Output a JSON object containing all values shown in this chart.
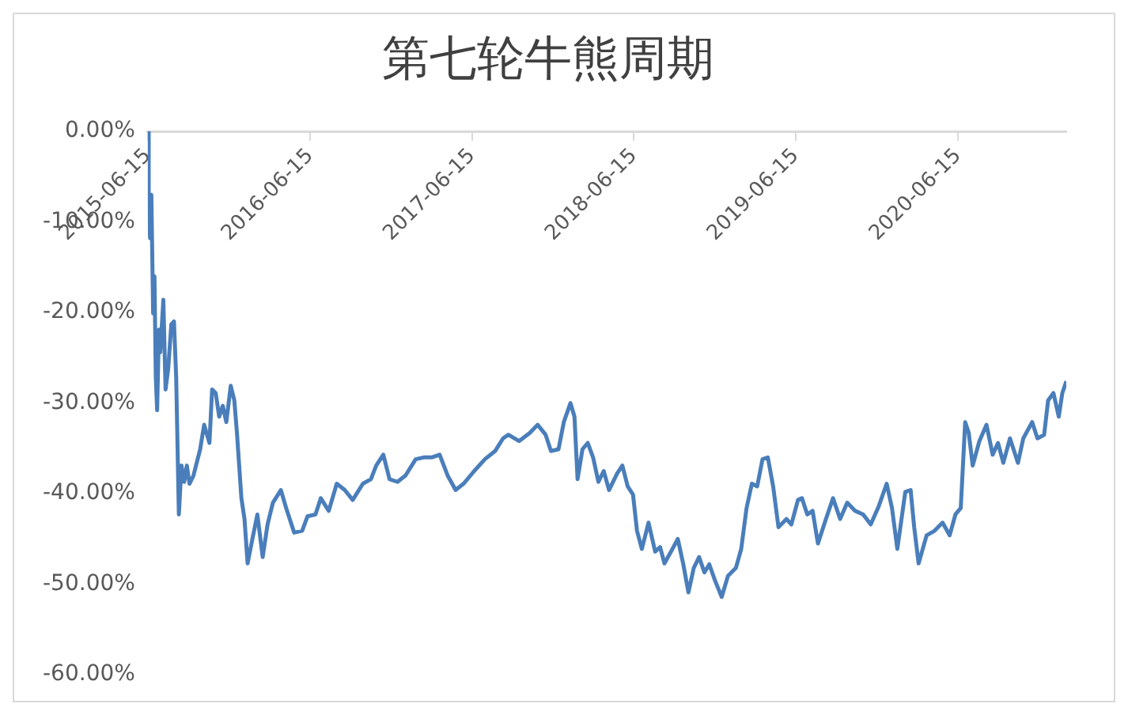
{
  "chart_data": {
    "type": "line",
    "title": "第七轮牛熊周期",
    "x": [
      "2015-06-15",
      "2015-06-17",
      "2015-06-20",
      "2015-06-23",
      "2015-06-27",
      "2015-06-30",
      "2015-07-03",
      "2015-07-06",
      "2015-07-10",
      "2015-07-13",
      "2015-07-20",
      "2015-07-25",
      "2015-07-31",
      "2015-08-07",
      "2015-08-13",
      "2015-08-18",
      "2015-08-24",
      "2015-08-30",
      "2015-09-05",
      "2015-09-11",
      "2015-09-17",
      "2015-09-26",
      "2015-10-11",
      "2015-10-20",
      "2015-11-01",
      "2015-11-07",
      "2015-11-15",
      "2015-11-23",
      "2015-12-01",
      "2015-12-09",
      "2015-12-19",
      "2015-12-27",
      "2016-01-02",
      "2016-01-12",
      "2016-01-19",
      "2016-01-26",
      "2016-02-05",
      "2016-02-17",
      "2016-02-29",
      "2016-03-11",
      "2016-03-23",
      "2016-04-10",
      "2016-04-22",
      "2016-05-10",
      "2016-05-28",
      "2016-06-09",
      "2016-06-27",
      "2016-07-09",
      "2016-07-27",
      "2016-08-14",
      "2016-09-01",
      "2016-09-19",
      "2016-10-12",
      "2016-10-30",
      "2016-11-11",
      "2016-11-27",
      "2016-12-11",
      "2016-12-29",
      "2017-01-16",
      "2017-02-08",
      "2017-02-26",
      "2017-03-16",
      "2017-04-03",
      "2017-04-21",
      "2017-05-09",
      "2017-05-27",
      "2017-06-20",
      "2017-07-14",
      "2017-08-06",
      "2017-08-24",
      "2017-09-05",
      "2017-09-29",
      "2017-10-23",
      "2017-11-10",
      "2017-11-28",
      "2017-12-10",
      "2017-12-27",
      "2018-01-08",
      "2018-01-23",
      "2018-02-01",
      "2018-02-08",
      "2018-02-19",
      "2018-03-03",
      "2018-03-15",
      "2018-03-27",
      "2018-04-08",
      "2018-04-20",
      "2018-05-08",
      "2018-05-20",
      "2018-06-01",
      "2018-06-13",
      "2018-06-22",
      "2018-07-03",
      "2018-07-18",
      "2018-08-02",
      "2018-08-13",
      "2018-08-23",
      "2018-09-10",
      "2018-09-22",
      "2018-10-04",
      "2018-10-16",
      "2018-10-28",
      "2018-11-09",
      "2018-11-21",
      "2018-12-02",
      "2018-12-15",
      "2018-12-30",
      "2019-01-13",
      "2019-01-31",
      "2019-02-12",
      "2019-02-24",
      "2019-03-08",
      "2019-03-20",
      "2019-04-01",
      "2019-04-13",
      "2019-04-25",
      "2019-05-07",
      "2019-05-25",
      "2019-06-05",
      "2019-06-20",
      "2019-06-29",
      "2019-07-11",
      "2019-07-23",
      "2019-08-04",
      "2019-08-22",
      "2019-09-07",
      "2019-09-23",
      "2019-10-09",
      "2019-10-27",
      "2019-11-14",
      "2019-12-01",
      "2019-12-19",
      "2020-01-06",
      "2020-01-18",
      "2020-01-30",
      "2020-02-17",
      "2020-02-29",
      "2020-03-08",
      "2020-03-18",
      "2020-04-05",
      "2020-04-23",
      "2020-05-11",
      "2020-05-27",
      "2020-06-09",
      "2020-06-21",
      "2020-07-01",
      "2020-07-09",
      "2020-07-18",
      "2020-08-02",
      "2020-08-18",
      "2020-09-01",
      "2020-09-13",
      "2020-09-25",
      "2020-10-10",
      "2020-10-28",
      "2020-11-09",
      "2020-11-29",
      "2020-12-11",
      "2020-12-26",
      "2021-01-04",
      "2021-01-16",
      "2021-01-28",
      "2021-02-05",
      "2021-02-14"
    ],
    "series": [
      {
        "color": "#4a7ebb",
        "values": [
          0,
          -6.4,
          -11.8,
          -7.0,
          -20.1,
          -16,
          -27.2,
          -30.8,
          -21.9,
          -24.4,
          -18.6,
          -28.5,
          -26.2,
          -21.3,
          -21,
          -27.2,
          -42.3,
          -36.9,
          -38.7,
          -36.9,
          -38.9,
          -38,
          -35.1,
          -32.4,
          -34.4,
          -28.5,
          -28.9,
          -31.5,
          -30.3,
          -32.1,
          -28.1,
          -29.7,
          -33.3,
          -40.5,
          -42.8,
          -47.7,
          -45.2,
          -42.3,
          -47,
          -43.4,
          -41,
          -39.6,
          -41.6,
          -44.3,
          -44.1,
          -42.5,
          -42.3,
          -40.5,
          -41.9,
          -38.9,
          -39.6,
          -40.7,
          -38.9,
          -38.4,
          -36.9,
          -35.7,
          -38.4,
          -38.7,
          -38,
          -36.2,
          -36,
          -36,
          -35.7,
          -38,
          -39.6,
          -38.9,
          -37.5,
          -36.2,
          -35.3,
          -33.9,
          -33.5,
          -34.2,
          -33.3,
          -32.4,
          -33.5,
          -35.3,
          -35.1,
          -32.1,
          -30,
          -31.5,
          -38.4,
          -35.1,
          -34.4,
          -36,
          -38.7,
          -37.5,
          -39.6,
          -37.8,
          -36.9,
          -39.2,
          -40.1,
          -44.1,
          -46.1,
          -43.2,
          -46.4,
          -45.9,
          -47.7,
          -46.1,
          -45,
          -47.7,
          -50.9,
          -48.2,
          -47,
          -48.7,
          -47.8,
          -49.6,
          -51.4,
          -49.1,
          -48.2,
          -46.1,
          -41.6,
          -38.9,
          -39.2,
          -36.2,
          -36,
          -39.2,
          -43.7,
          -42.8,
          -43.4,
          -40.7,
          -40.5,
          -42.3,
          -41.9,
          -45.5,
          -42.8,
          -40.5,
          -42.8,
          -41,
          -41.9,
          -42.3,
          -43.4,
          -41.4,
          -38.9,
          -41.6,
          -46.1,
          -39.8,
          -39.6,
          -43.7,
          -47.7,
          -44.6,
          -44.1,
          -43.2,
          -44.6,
          -42.3,
          -41.6,
          -32.1,
          -33.3,
          -36.9,
          -34.2,
          -32.4,
          -35.7,
          -34.4,
          -36.6,
          -33.9,
          -36.6,
          -33.9,
          -32.1,
          -33.9,
          -33.5,
          -29.7,
          -28.9,
          -31.5,
          -28.9,
          -27.6
        ]
      }
    ],
    "xlim": [
      "2015-06-15",
      "2021-02-14"
    ],
    "xticks": [
      "2015-06-15",
      "2016-06-15",
      "2017-06-15",
      "2018-06-15",
      "2019-06-15",
      "2020-06-15"
    ],
    "ylim": [
      -60,
      0
    ],
    "yticks": [
      {
        "value": 0,
        "label": "0.00%"
      },
      {
        "value": -10,
        "label": "-10.00%"
      },
      {
        "value": -20,
        "label": "-20.00%"
      },
      {
        "value": -30,
        "label": "-30.00%"
      },
      {
        "value": -40,
        "label": "-40.00%"
      },
      {
        "value": -50,
        "label": "-50.00%"
      },
      {
        "value": -60,
        "label": "-60.00%"
      }
    ],
    "grid": false,
    "legend": false,
    "marker": "none",
    "line_style": "solid"
  }
}
